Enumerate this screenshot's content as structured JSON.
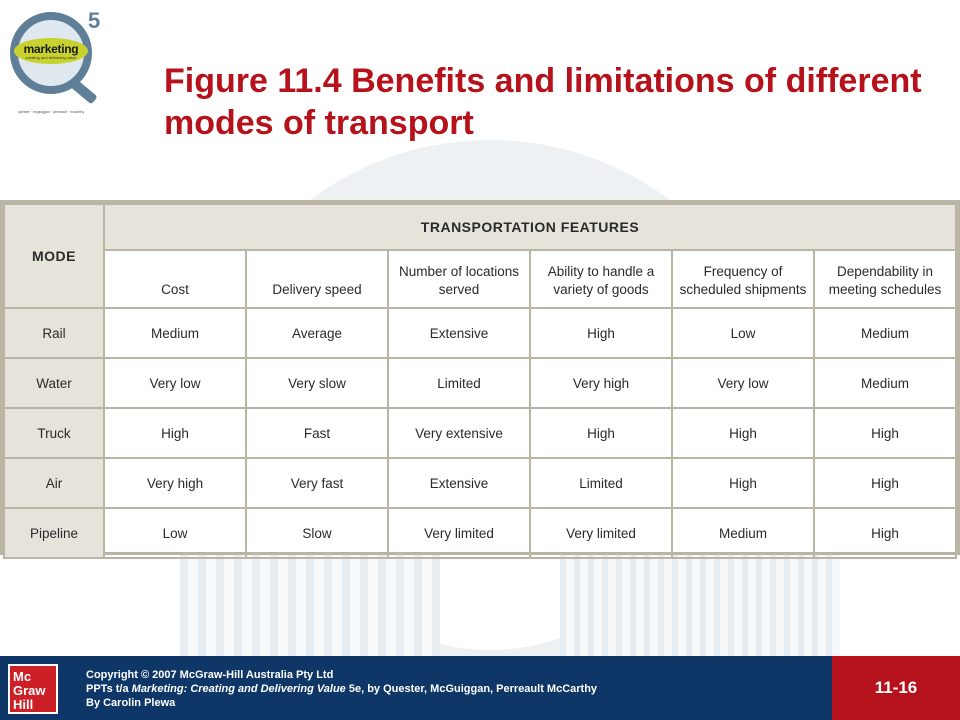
{
  "logo": {
    "word": "marketing",
    "sub": "creating and delivering value",
    "edition": "5",
    "tagline": "quester · mcguiggan · perreault · mccarthy"
  },
  "title": "Figure 11.4 Benefits and limitations of different modes of transport",
  "table": {
    "mode_header": "MODE",
    "features_header": "TRANSPORTATION FEATURES",
    "columns": [
      "Cost",
      "Delivery speed",
      "Number of locations served",
      "Ability to handle a variety of goods",
      "Frequency of scheduled shipments",
      "Dependability in meeting schedules"
    ],
    "rows": [
      {
        "mode": "Rail",
        "cells": [
          "Medium",
          "Average",
          "Extensive",
          "High",
          "Low",
          "Medium"
        ]
      },
      {
        "mode": "Water",
        "cells": [
          "Very low",
          "Very slow",
          "Limited",
          "Very high",
          "Very low",
          "Medium"
        ]
      },
      {
        "mode": "Truck",
        "cells": [
          "High",
          "Fast",
          "Very extensive",
          "High",
          "High",
          "High"
        ]
      },
      {
        "mode": "Air",
        "cells": [
          "Very high",
          "Very fast",
          "Extensive",
          "Limited",
          "High",
          "High"
        ]
      },
      {
        "mode": "Pipeline",
        "cells": [
          "Low",
          "Slow",
          "Very limited",
          "Very limited",
          "Medium",
          "High"
        ]
      }
    ]
  },
  "footer": {
    "publisher_logo": "Mc Graw Hill",
    "line1": "Copyright © 2007 McGraw-Hill Australia Pty Ltd",
    "line2_prefix": "PPTs t/a ",
    "line2_title": "Marketing: Creating and Delivering Value",
    "line2_suffix": " 5e, by Quester, McGuiggan, Perreault McCarthy",
    "line3": "By Carolin Plewa",
    "page_number": "11-16"
  },
  "colors": {
    "title": "#b5121b",
    "footer_bg": "#0e3768",
    "page_box": "#b5121b",
    "table_header_bg": "#e5e3da",
    "table_border": "#b9b4a4"
  }
}
